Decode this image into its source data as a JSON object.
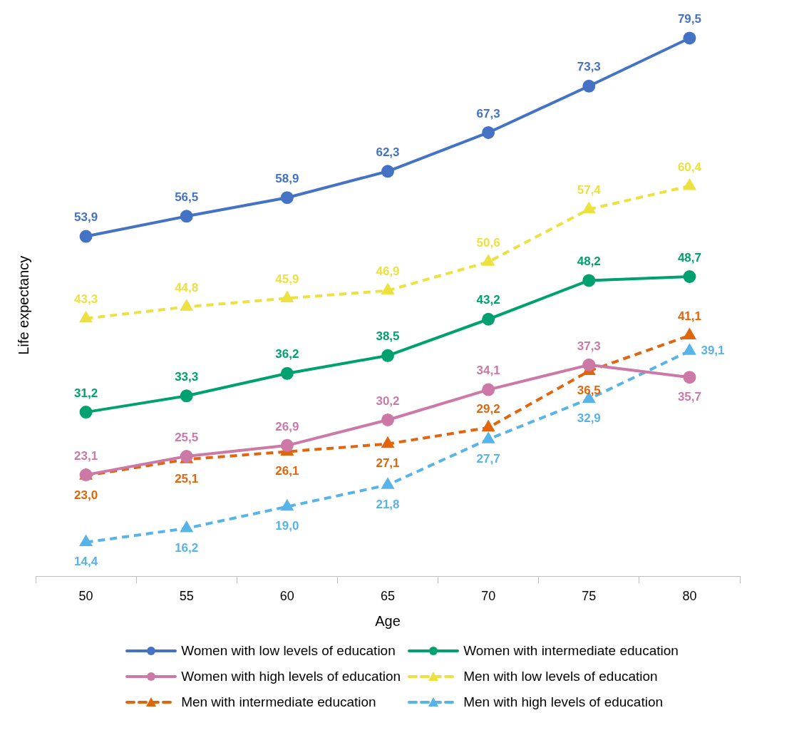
{
  "chart_data": {
    "type": "line",
    "xlabel": "Age",
    "ylabel": "Life expectancy",
    "categories": [
      "50",
      "55",
      "60",
      "65",
      "70",
      "75",
      "80"
    ],
    "legend": "bottom",
    "grid": false,
    "series": [
      {
        "name": "Women with low levels of education",
        "color": "#4472c4",
        "marker": "circle",
        "line_style": "solid",
        "values": [
          53.9,
          56.5,
          58.9,
          62.3,
          67.3,
          73.3,
          79.5
        ],
        "value_labels": [
          "53,9",
          "56,5",
          "58,9",
          "62,3",
          "67,3",
          "73,3",
          "79,5"
        ]
      },
      {
        "name": "Women with intermediate education",
        "color": "#00a170",
        "marker": "circle",
        "line_style": "solid",
        "values": [
          31.2,
          33.3,
          36.2,
          38.5,
          43.2,
          48.2,
          48.7
        ],
        "value_labels": [
          "31,2",
          "33,3",
          "36,2",
          "38,5",
          "43,2",
          "48,2",
          "48,7"
        ]
      },
      {
        "name": "Women with high levels of education",
        "color": "#cc79a7",
        "marker": "circle",
        "line_style": "solid",
        "values": [
          23.1,
          25.5,
          26.9,
          30.2,
          34.1,
          37.3,
          35.7
        ],
        "value_labels": [
          "23,1",
          "25,5",
          "26,9",
          "30,2",
          "34,1",
          "37,3",
          "35,7"
        ]
      },
      {
        "name": "Men with low levels of education",
        "color": "#ede13f",
        "marker": "triangle",
        "line_style": "dashed",
        "values": [
          43.3,
          44.8,
          45.9,
          46.9,
          50.6,
          57.4,
          60.4
        ],
        "value_labels": [
          "43,3",
          "44,8",
          "45,9",
          "46,9",
          "50,6",
          "57,4",
          "60,4"
        ]
      },
      {
        "name": "Men with intermediate education",
        "color": "#e0650c",
        "marker": "triangle",
        "line_style": "dashed",
        "values": [
          23.0,
          25.1,
          26.1,
          27.1,
          29.2,
          36.5,
          41.1
        ],
        "value_labels": [
          "23,0",
          "25,1",
          "26,1",
          "27,1",
          "29,2",
          "36,5",
          "41,1"
        ]
      },
      {
        "name": "Men with high levels of education",
        "color": "#56b4e9",
        "marker": "triangle",
        "line_style": "dashed",
        "values": [
          14.4,
          16.2,
          19.0,
          21.8,
          27.7,
          32.9,
          39.1
        ],
        "value_labels": [
          "14,4",
          "16,2",
          "19,0",
          "21,8",
          "27,7",
          "32,9",
          "39,1"
        ]
      }
    ]
  }
}
